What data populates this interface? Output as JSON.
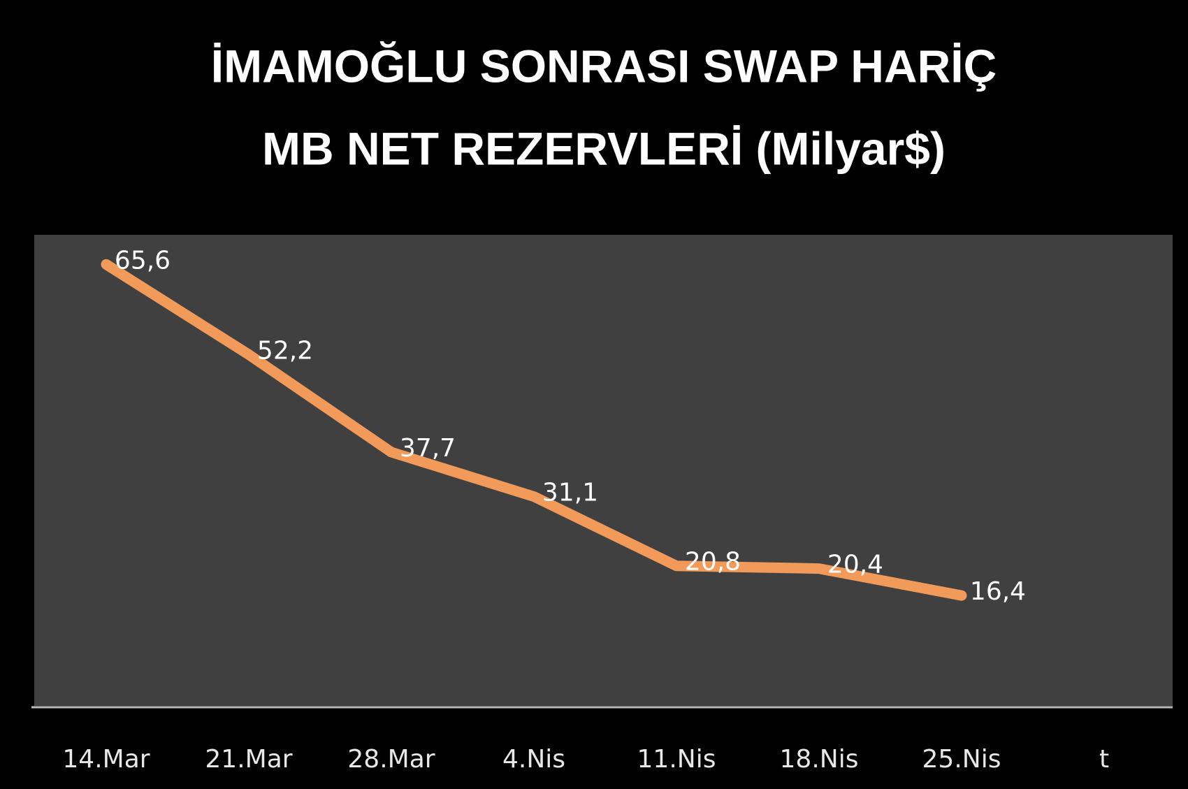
{
  "chart_data": {
    "type": "line",
    "title": [
      "İMAMOĞLU SONRASI SWAP HARİÇ",
      "MB NET REZERVLERİ (Milyar$)"
    ],
    "categories": [
      "14.Mar",
      "21.Mar",
      "28.Mar",
      "4.Nis",
      "11.Nis",
      "18.Nis",
      "25.Nis",
      "t"
    ],
    "values": [
      65.6,
      52.2,
      37.7,
      31.1,
      20.8,
      20.4,
      16.4,
      null
    ],
    "value_labels": [
      "65,6",
      "52,2",
      "37,7",
      "31,1",
      "20,8",
      "20,4",
      "16,4",
      null
    ],
    "color": "#f29a5a",
    "ylim": [
      0,
      70
    ]
  }
}
